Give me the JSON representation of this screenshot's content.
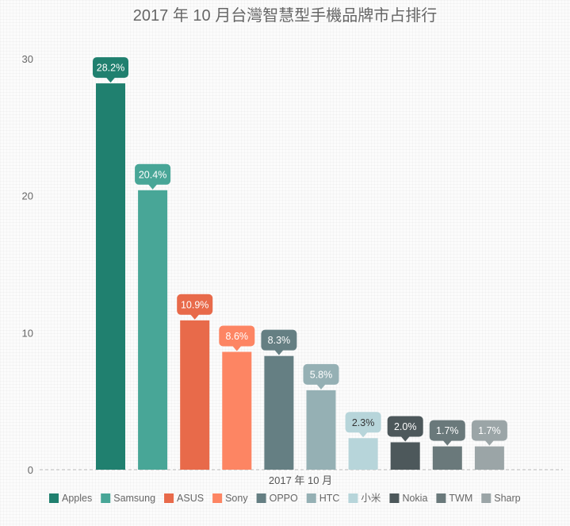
{
  "chart_data": {
    "type": "bar",
    "title": "2017 年 10 月台灣智慧型手機品牌市占排行",
    "categories": [
      "2017 年 10 月"
    ],
    "ylim": [
      0,
      30
    ],
    "yticks": [
      0,
      10,
      20,
      30
    ],
    "grid": false,
    "legend_position": "bottom",
    "series": [
      {
        "name": "Apples",
        "values": [
          28.2
        ],
        "label": "28.2%",
        "color": "#20806f"
      },
      {
        "name": "Samsung",
        "values": [
          20.4
        ],
        "label": "20.4%",
        "color": "#48a697"
      },
      {
        "name": "ASUS",
        "values": [
          10.9
        ],
        "label": "10.9%",
        "color": "#e86a4a"
      },
      {
        "name": "Sony",
        "values": [
          8.6
        ],
        "label": "8.6%",
        "color": "#fd8563"
      },
      {
        "name": "OPPO",
        "values": [
          8.3
        ],
        "label": "8.3%",
        "color": "#657f83"
      },
      {
        "name": "HTC",
        "values": [
          5.8
        ],
        "label": "5.8%",
        "color": "#95b0b4"
      },
      {
        "name": "小米",
        "values": [
          2.3
        ],
        "label": "2.3%",
        "color": "#b7d5da"
      },
      {
        "name": "Nokia",
        "values": [
          2.0
        ],
        "label": "2.0%",
        "color": "#4d585b"
      },
      {
        "name": "TWM",
        "values": [
          1.7
        ],
        "label": "1.7%",
        "color": "#6a797b"
      },
      {
        "name": "Sharp",
        "values": [
          1.7
        ],
        "label": "1.7%",
        "color": "#9ba5a7"
      }
    ]
  }
}
